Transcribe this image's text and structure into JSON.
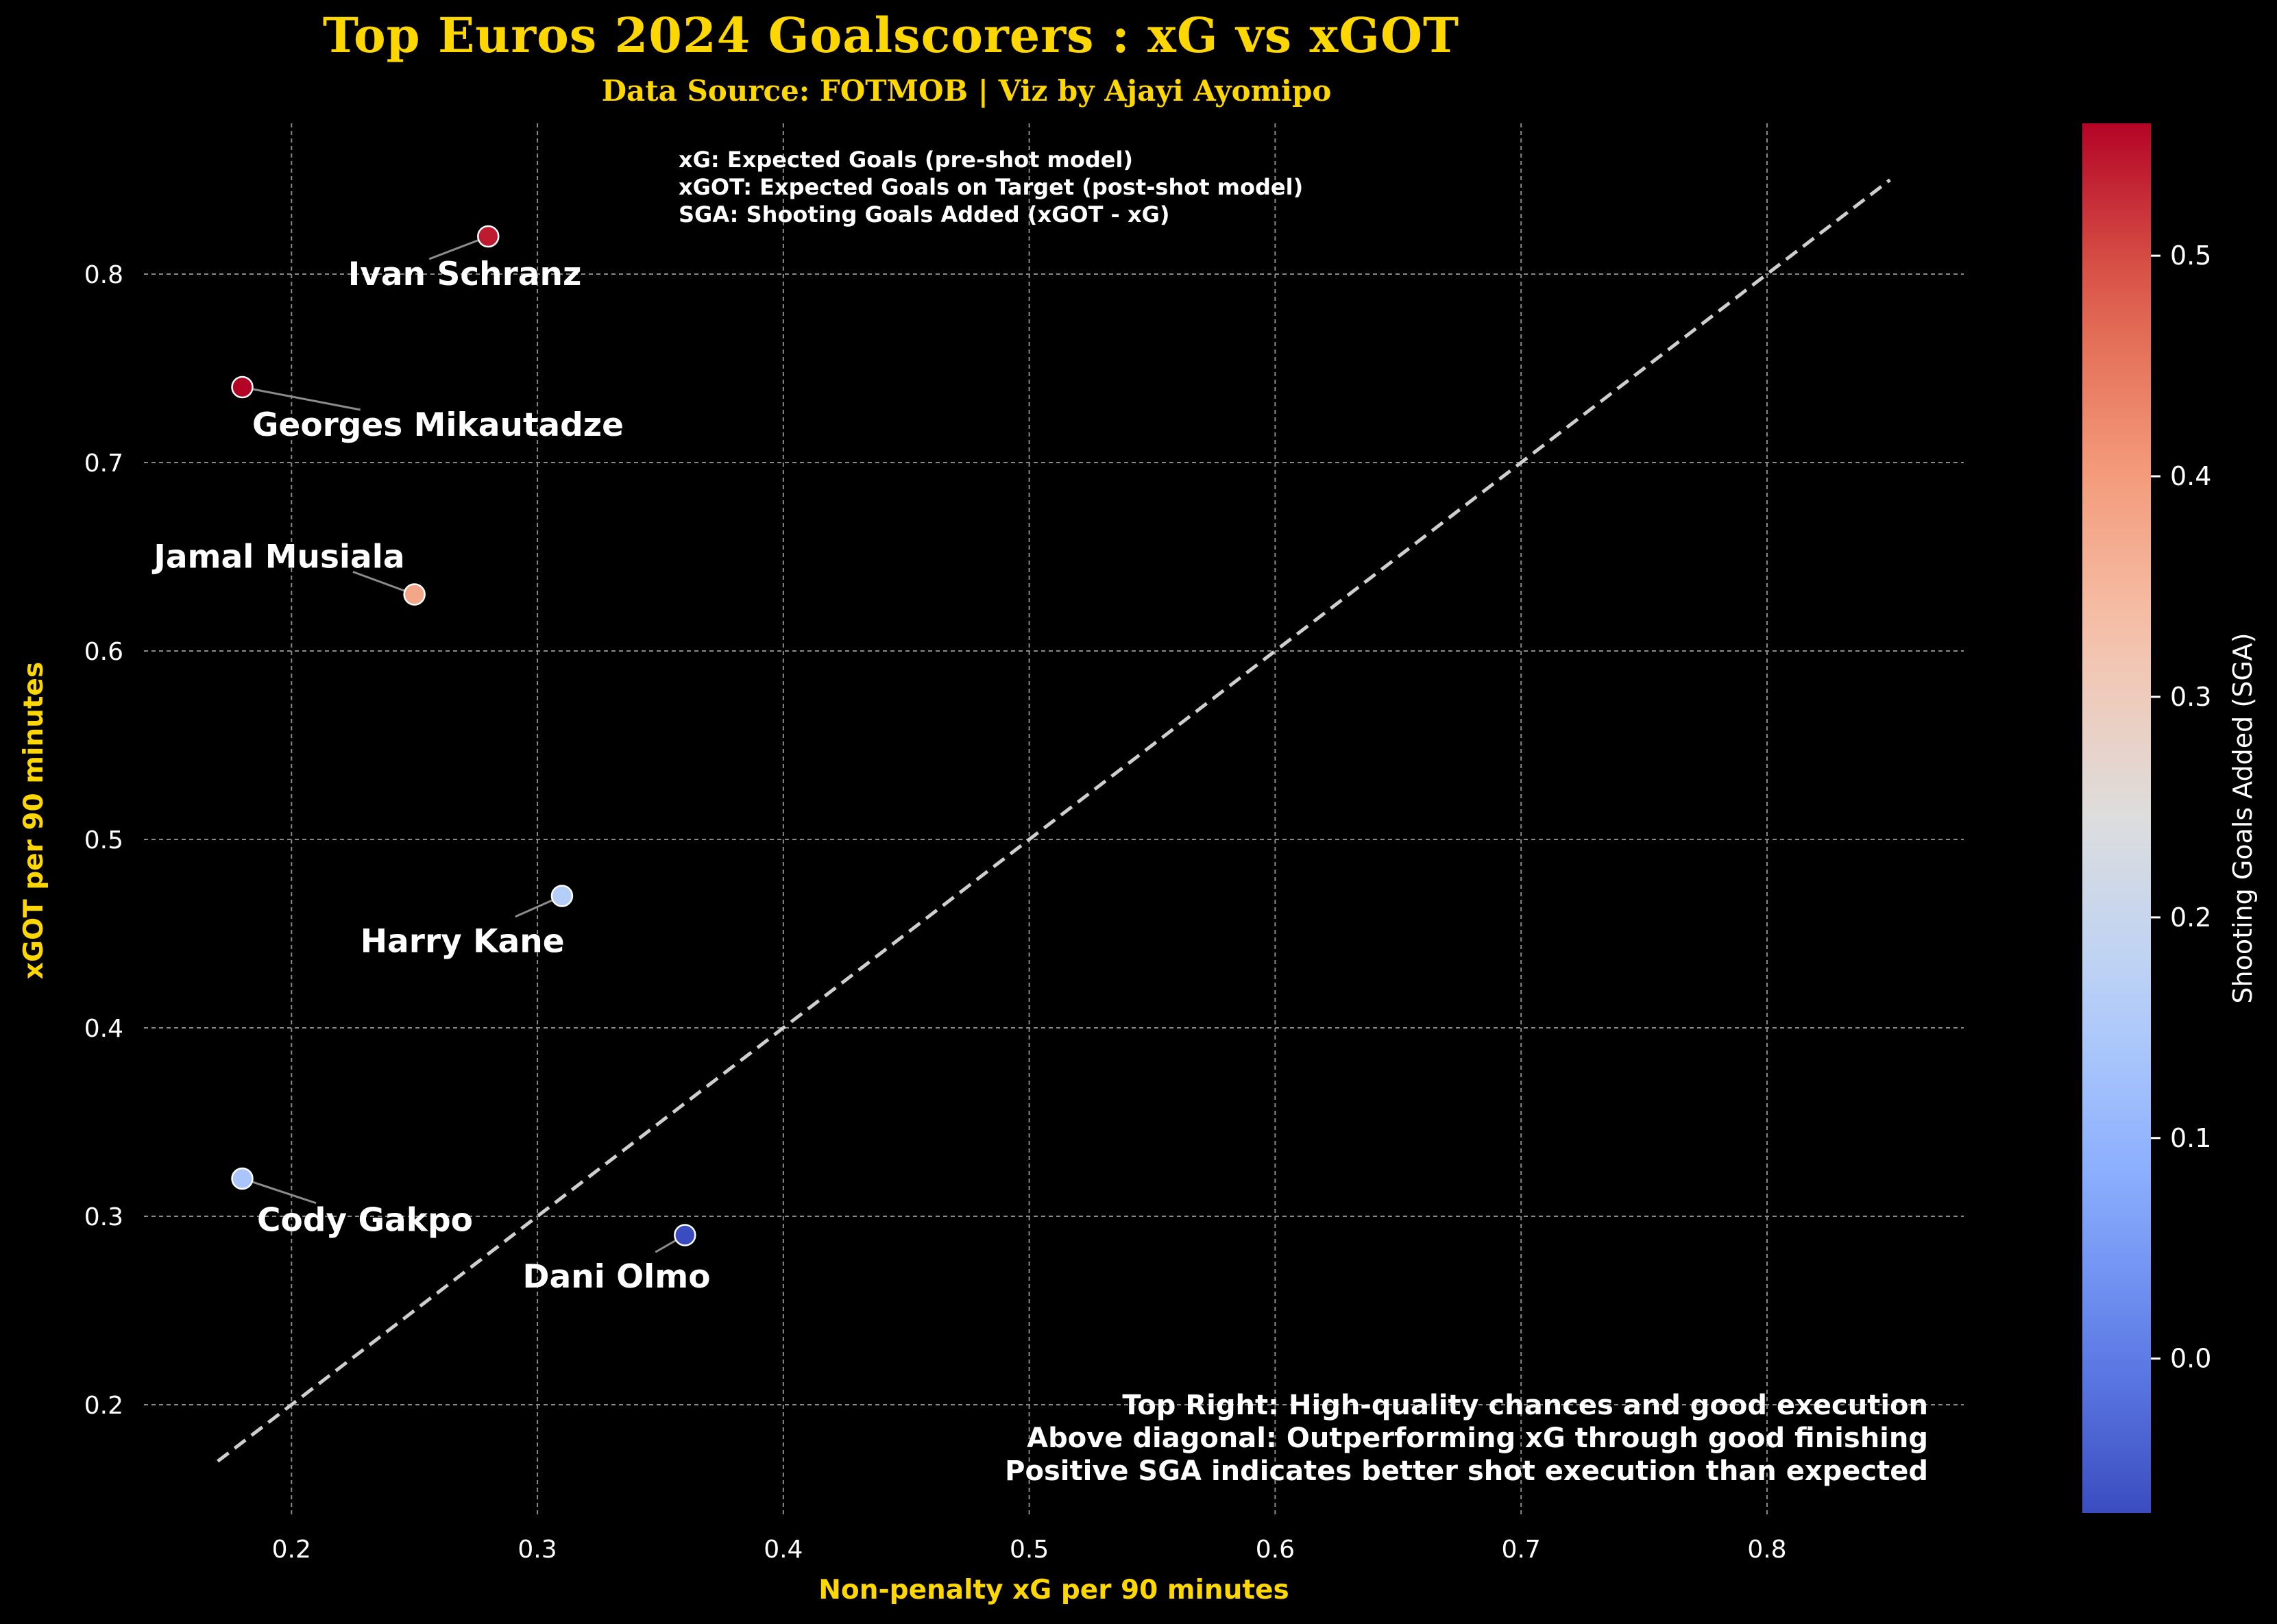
{
  "title": "Top Euros 2024 Goalscorers : xG vs xGOT",
  "subtitle": "Data Source: FOTMOB | Viz by Ajayi Ayomipo",
  "legend_notes": [
    "xG: Expected Goals (pre-shot model)",
    "xGOT: Expected Goals on Target (post-shot model)",
    "SGA: Shooting Goals Added (xGOT - xG)"
  ],
  "footnotes": [
    "Top Right: High-quality chances and good execution",
    "Above diagonal: Outperforming xG through good finishing",
    "Positive SGA indicates better shot execution than expected"
  ],
  "colors": {
    "background": "#000000",
    "accent": "#FFD700",
    "text": "#FFFFFF",
    "grid": "#8a8a8a",
    "diagonal": "#cfcfcf"
  },
  "chart_data": {
    "type": "scatter",
    "xlabel": "Non-penalty xG per 90 minutes",
    "ylabel": "xGOT per 90 minutes",
    "xlim": [
      0.14,
      0.88
    ],
    "ylim": [
      0.14,
      0.88
    ],
    "xticks": [
      0.2,
      0.3,
      0.4,
      0.5,
      0.6,
      0.7,
      0.8
    ],
    "yticks": [
      0.2,
      0.3,
      0.4,
      0.5,
      0.6,
      0.7,
      0.8
    ],
    "grid": true,
    "diagonal": {
      "style": "dashed",
      "from": [
        0.17,
        0.17
      ],
      "to": [
        0.85,
        0.85
      ]
    },
    "points": [
      {
        "name": "Ivan Schranz",
        "x": 0.28,
        "y": 0.82,
        "sga": 0.54
      },
      {
        "name": "Georges Mikautadze",
        "x": 0.18,
        "y": 0.74,
        "sga": 0.56
      },
      {
        "name": "Jamal Musiala",
        "x": 0.25,
        "y": 0.63,
        "sga": 0.38
      },
      {
        "name": "Harry Kane",
        "x": 0.31,
        "y": 0.47,
        "sga": 0.16
      },
      {
        "name": "Cody Gakpo",
        "x": 0.18,
        "y": 0.32,
        "sga": 0.14
      },
      {
        "name": "Dani Olmo",
        "x": 0.36,
        "y": 0.29,
        "sga": -0.07
      }
    ],
    "colorbar": {
      "label": "Shooting Goals Added (SGA)",
      "range": [
        -0.07,
        0.56
      ],
      "ticks": [
        0.0,
        0.1,
        0.2,
        0.3,
        0.4,
        0.5
      ],
      "colormap": "coolwarm"
    }
  }
}
